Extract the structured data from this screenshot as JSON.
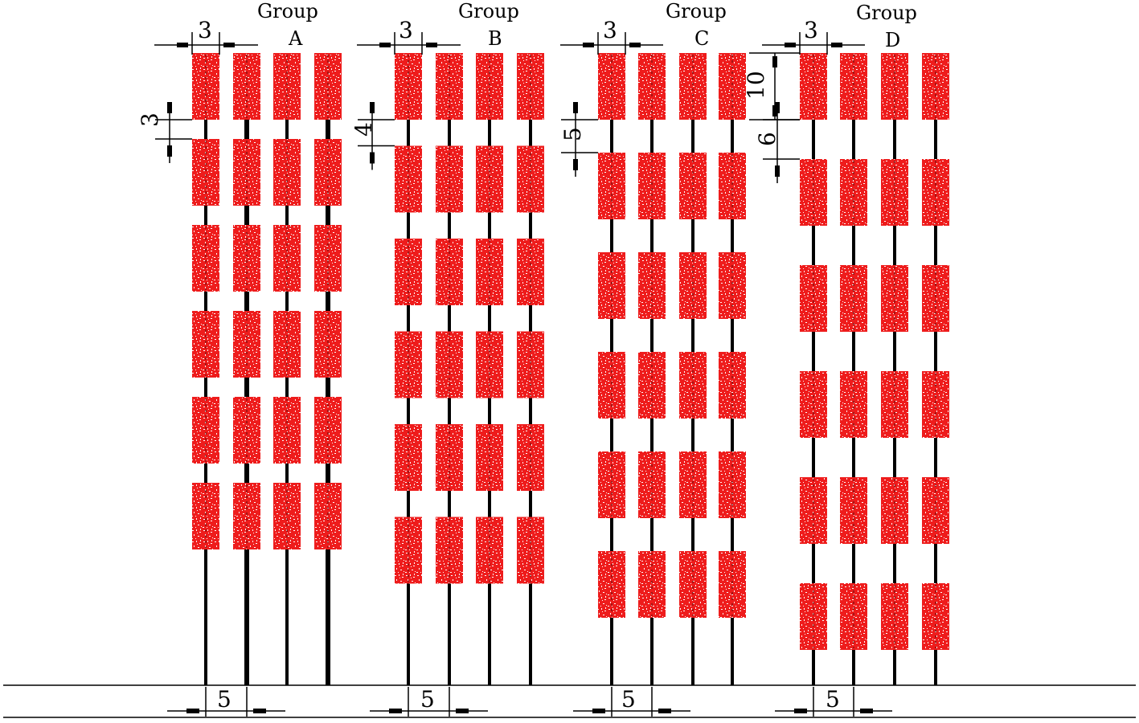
{
  "colors": {
    "block": "#ee1c1c",
    "speckle": "#ffffff",
    "line": "#000000",
    "background": "#ffffff"
  },
  "groups": [
    {
      "id": "A",
      "title": "Group",
      "letter": "A",
      "block_width": "3",
      "gap": "3",
      "spacing": "5",
      "rows": 6
    },
    {
      "id": "B",
      "title": "Group",
      "letter": "B",
      "block_width": "3",
      "gap": "4",
      "spacing": "5",
      "rows": 6
    },
    {
      "id": "C",
      "title": "Group",
      "letter": "C",
      "block_width": "3",
      "gap": "5",
      "spacing": "5",
      "rows": 6
    },
    {
      "id": "D",
      "title": "Group",
      "letter": "D",
      "block_width": "3",
      "block_height": "10",
      "gap": "6",
      "spacing": "5",
      "rows": 6
    }
  ]
}
